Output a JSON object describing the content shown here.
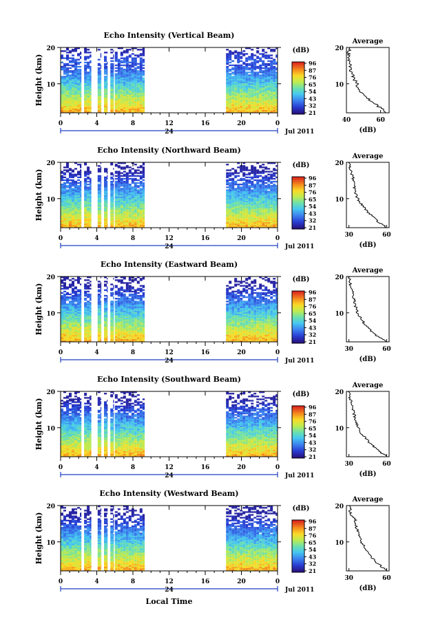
{
  "figure": {
    "xlabel": "Local Time",
    "date_label": "Jul 2011",
    "day_label": "24",
    "unit_label": "(dB)",
    "avg_title": "Average"
  },
  "chart_data": [
    {
      "type": "heatmap",
      "title": "Echo Intensity (Vertical Beam)",
      "ylabel": "Height (km)",
      "x_ticks": [
        "0",
        "4",
        "8",
        "12",
        "16",
        "20",
        "0"
      ],
      "xlim": [
        0,
        24
      ],
      "y_ticks": [
        "10",
        "20"
      ],
      "ylim": [
        2,
        20
      ],
      "colorbar_ticks": [
        "96",
        "87",
        "76",
        "65",
        "54",
        "43",
        "32",
        "21"
      ],
      "data_segments_hours": [
        [
          0,
          2.3
        ],
        [
          2.6,
          3.4
        ],
        [
          4.1,
          4.5
        ],
        [
          4.8,
          5.2
        ],
        [
          5.5,
          5.9
        ],
        [
          6.0,
          9.3
        ],
        [
          18.3,
          24.0
        ]
      ],
      "average_profile": {
        "title": "Average",
        "xlabel": "(dB)",
        "x_ticks": [
          "40",
          "60"
        ],
        "xlim": [
          40,
          65
        ],
        "y_ticks": [
          "10",
          "20"
        ],
        "ylim": [
          2,
          20
        ],
        "heights_km": [
          2,
          4,
          6,
          8,
          10,
          12,
          14,
          16,
          18,
          20
        ],
        "values_db": [
          64,
          58,
          52,
          48,
          46,
          44,
          42,
          42,
          41,
          42
        ]
      }
    },
    {
      "type": "heatmap",
      "title": "Echo Intensity (Northward Beam)",
      "ylabel": "Height (km)",
      "x_ticks": [
        "0",
        "4",
        "8",
        "12",
        "16",
        "20",
        "0"
      ],
      "xlim": [
        0,
        24
      ],
      "y_ticks": [
        "10",
        "20"
      ],
      "ylim": [
        2,
        20
      ],
      "colorbar_ticks": [
        "96",
        "87",
        "76",
        "65",
        "54",
        "43",
        "32",
        "21"
      ],
      "data_segments_hours": [
        [
          0,
          2.3
        ],
        [
          2.6,
          3.4
        ],
        [
          4.1,
          4.5
        ],
        [
          4.8,
          5.2
        ],
        [
          5.5,
          5.9
        ],
        [
          6.0,
          9.3
        ],
        [
          18.3,
          24.0
        ]
      ],
      "average_profile": {
        "title": "Average",
        "xlabel": "(dB)",
        "x_ticks": [
          "30",
          "60"
        ],
        "xlim": [
          28,
          62
        ],
        "y_ticks": [
          "10",
          "20"
        ],
        "ylim": [
          2,
          20
        ],
        "heights_km": [
          2,
          4,
          6,
          8,
          10,
          12,
          14,
          16,
          18,
          20
        ],
        "values_db": [
          60,
          52,
          46,
          41,
          37,
          35,
          34,
          33,
          31,
          30
        ]
      }
    },
    {
      "type": "heatmap",
      "title": "Echo Intensity (Eastward Beam)",
      "ylabel": "Height (km)",
      "x_ticks": [
        "0",
        "4",
        "8",
        "12",
        "16",
        "20",
        "0"
      ],
      "xlim": [
        0,
        24
      ],
      "y_ticks": [
        "10",
        "20"
      ],
      "ylim": [
        2,
        20
      ],
      "colorbar_ticks": [
        "96",
        "87",
        "76",
        "65",
        "54",
        "43",
        "32",
        "21"
      ],
      "data_segments_hours": [
        [
          0,
          2.3
        ],
        [
          2.6,
          3.4
        ],
        [
          4.1,
          4.5
        ],
        [
          4.8,
          5.2
        ],
        [
          5.5,
          5.9
        ],
        [
          6.0,
          9.3
        ],
        [
          18.3,
          24.0
        ]
      ],
      "average_profile": {
        "title": "Average",
        "xlabel": "(dB)",
        "x_ticks": [
          "30",
          "60"
        ],
        "xlim": [
          28,
          62
        ],
        "y_ticks": [
          "10",
          "20"
        ],
        "ylim": [
          2,
          20
        ],
        "heights_km": [
          2,
          4,
          6,
          8,
          10,
          12,
          14,
          16,
          18,
          20
        ],
        "values_db": [
          60,
          51,
          45,
          40,
          37,
          35,
          34,
          33,
          31,
          30
        ]
      }
    },
    {
      "type": "heatmap",
      "title": "Echo Intensity (Southward Beam)",
      "ylabel": "Height (km)",
      "x_ticks": [
        "0",
        "4",
        "8",
        "12",
        "16",
        "20",
        "0"
      ],
      "xlim": [
        0,
        24
      ],
      "y_ticks": [
        "10",
        "20"
      ],
      "ylim": [
        2,
        20
      ],
      "colorbar_ticks": [
        "96",
        "87",
        "76",
        "65",
        "54",
        "43",
        "32",
        "21"
      ],
      "data_segments_hours": [
        [
          0,
          2.3
        ],
        [
          2.6,
          3.4
        ],
        [
          4.1,
          4.5
        ],
        [
          4.8,
          5.2
        ],
        [
          5.5,
          5.9
        ],
        [
          6.0,
          9.3
        ],
        [
          18.3,
          24.0
        ]
      ],
      "average_profile": {
        "title": "Average",
        "xlabel": "(dB)",
        "x_ticks": [
          "30",
          "60"
        ],
        "xlim": [
          28,
          62
        ],
        "y_ticks": [
          "10",
          "20"
        ],
        "ylim": [
          2,
          20
        ],
        "heights_km": [
          2,
          4,
          6,
          8,
          10,
          12,
          14,
          16,
          18,
          20
        ],
        "values_db": [
          60,
          52,
          46,
          41,
          37,
          35,
          34,
          33,
          31,
          30
        ]
      }
    },
    {
      "type": "heatmap",
      "title": "Echo Intensity (Westward Beam)",
      "ylabel": "Height (km)",
      "x_ticks": [
        "0",
        "4",
        "8",
        "12",
        "16",
        "20",
        "0"
      ],
      "xlim": [
        0,
        24
      ],
      "y_ticks": [
        "10",
        "20"
      ],
      "ylim": [
        2,
        20
      ],
      "colorbar_ticks": [
        "96",
        "87",
        "76",
        "65",
        "54",
        "43",
        "32",
        "21"
      ],
      "data_segments_hours": [
        [
          0,
          2.3
        ],
        [
          2.6,
          3.4
        ],
        [
          4.1,
          4.5
        ],
        [
          4.8,
          5.2
        ],
        [
          5.5,
          5.9
        ],
        [
          6.0,
          9.3
        ],
        [
          18.3,
          24.0
        ]
      ],
      "average_profile": {
        "title": "Average",
        "xlabel": "(dB)",
        "x_ticks": [
          "30",
          "60"
        ],
        "xlim": [
          28,
          62
        ],
        "y_ticks": [
          "10",
          "20"
        ],
        "ylim": [
          2,
          20
        ],
        "heights_km": [
          2,
          4,
          6,
          8,
          10,
          12,
          14,
          16,
          18,
          20
        ],
        "values_db": [
          60,
          53,
          47,
          43,
          40,
          38,
          36,
          35,
          31,
          31
        ]
      }
    }
  ]
}
